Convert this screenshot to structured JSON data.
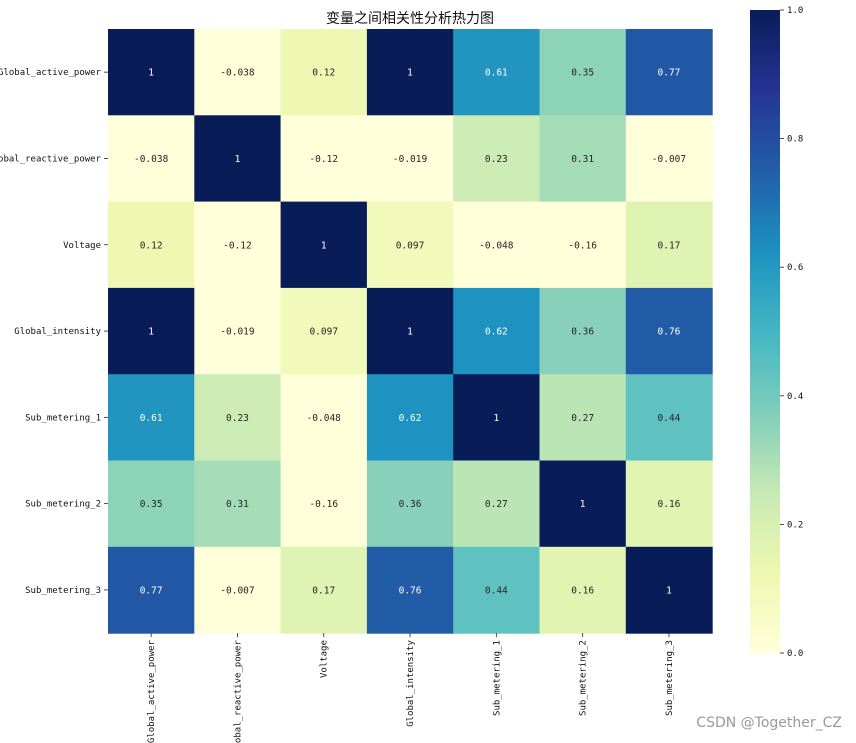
{
  "chart_data": {
    "type": "heatmap",
    "title": "变量之间相关性分析热力图",
    "variables": [
      "Global_active_power",
      "Global_reactive_power",
      "Voltage",
      "Global_intensity",
      "Sub_metering_1",
      "Sub_metering_2",
      "Sub_metering_3"
    ],
    "matrix": [
      [
        1,
        -0.038,
        0.12,
        1,
        0.61,
        0.35,
        0.77
      ],
      [
        -0.038,
        1,
        -0.12,
        -0.019,
        0.23,
        0.31,
        -0.007
      ],
      [
        0.12,
        -0.12,
        1,
        0.097,
        -0.048,
        -0.16,
        0.17
      ],
      [
        1,
        -0.019,
        0.097,
        1,
        0.62,
        0.36,
        0.76
      ],
      [
        0.61,
        0.23,
        -0.048,
        0.62,
        1,
        0.27,
        0.44
      ],
      [
        0.35,
        0.31,
        -0.16,
        0.36,
        0.27,
        1,
        0.16
      ],
      [
        0.77,
        -0.007,
        0.17,
        0.76,
        0.44,
        0.16,
        1
      ]
    ],
    "annotations": [
      [
        "1",
        "-0.038",
        "0.12",
        "1",
        "0.61",
        "0.35",
        "0.77"
      ],
      [
        "-0.038",
        "1",
        "-0.12",
        "-0.019",
        "0.23",
        "0.31",
        "-0.007"
      ],
      [
        "0.12",
        "-0.12",
        "1",
        "0.097",
        "-0.048",
        "-0.16",
        "0.17"
      ],
      [
        "1",
        "-0.019",
        "0.097",
        "1",
        "0.62",
        "0.36",
        "0.76"
      ],
      [
        "0.61",
        "0.23",
        "-0.048",
        "0.62",
        "1",
        "0.27",
        "0.44"
      ],
      [
        "0.35",
        "0.31",
        "-0.16",
        "0.36",
        "0.27",
        "1",
        "0.16"
      ],
      [
        "0.77",
        "-0.007",
        "0.17",
        "0.76",
        "0.44",
        "0.16",
        "1"
      ]
    ],
    "colormap": "YlGnBu",
    "colormap_stops": [
      "#ffffd9",
      "#edf8b1",
      "#c7e9b4",
      "#7fcdbb",
      "#41b6c4",
      "#1d91c0",
      "#225ea8",
      "#253494",
      "#081d58"
    ],
    "vmin": 0,
    "vmax": 1,
    "colorbar": {
      "ticks": [
        0.0,
        0.2,
        0.4,
        0.6,
        0.8,
        1.0
      ],
      "tick_labels": [
        "0.0",
        "0.2",
        "0.4",
        "0.6",
        "0.8",
        "1.0"
      ],
      "placement": "right"
    }
  },
  "watermark": "CSDN @Together_CZ"
}
